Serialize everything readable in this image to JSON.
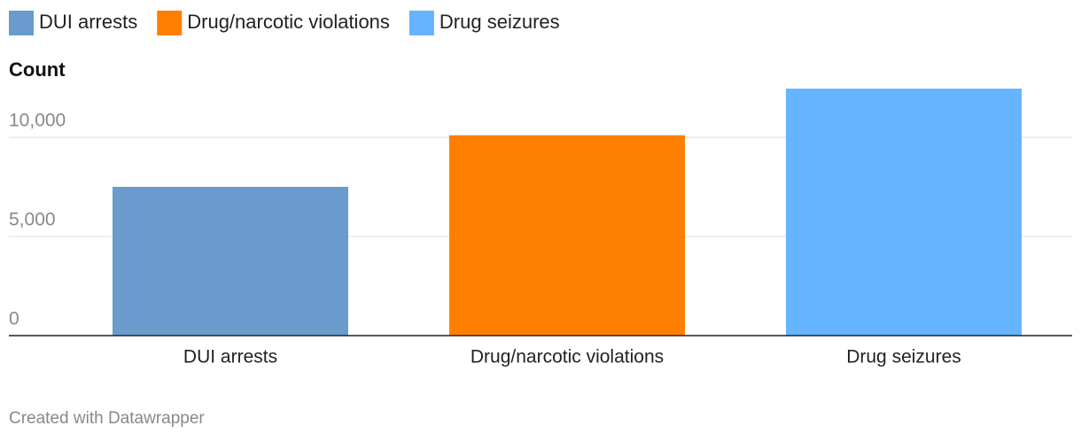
{
  "chart_data": {
    "type": "bar",
    "y_axis_label": "Count",
    "categories": [
      "DUI arrests",
      "Drug/narcotic violations",
      "Drug seizures"
    ],
    "values": [
      7500,
      10100,
      12450
    ],
    "colors": [
      "#699bcc",
      "#ff7f00",
      "#66b3ff"
    ],
    "ylim": [
      0,
      12500
    ],
    "yticks": [
      0,
      {
        "value": 5000,
        "label": "5,000"
      },
      {
        "value": 10000,
        "label": "10,000"
      }
    ],
    "grid": true,
    "legend": "top-left",
    "footer": "Created with Datawrapper"
  }
}
